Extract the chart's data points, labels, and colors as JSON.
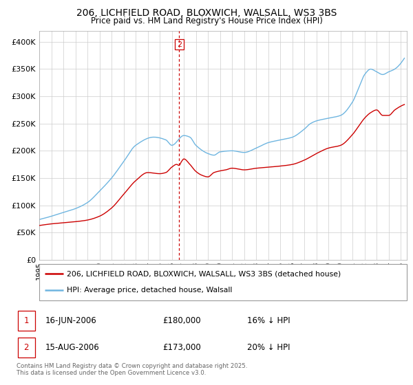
{
  "title_line1": "206, LICHFIELD ROAD, BLOXWICH, WALSALL, WS3 3BS",
  "title_line2": "Price paid vs. HM Land Registry's House Price Index (HPI)",
  "legend_line1": "206, LICHFIELD ROAD, BLOXWICH, WALSALL, WS3 3BS (detached house)",
  "legend_line2": "HPI: Average price, detached house, Walsall",
  "hpi_color": "#6eb5e0",
  "price_color": "#cc0000",
  "annotation_color": "#cc0000",
  "transaction1_date": "16-JUN-2006",
  "transaction1_price": "£180,000",
  "transaction1_hpi": "16% ↓ HPI",
  "transaction2_date": "15-AUG-2006",
  "transaction2_price": "£173,000",
  "transaction2_hpi": "20% ↓ HPI",
  "transaction2_year": 2006.62,
  "footnote": "Contains HM Land Registry data © Crown copyright and database right 2025.\nThis data is licensed under the Open Government Licence v3.0.",
  "ylim": [
    0,
    420000
  ],
  "yticks": [
    0,
    50000,
    100000,
    150000,
    200000,
    250000,
    300000,
    350000,
    400000
  ],
  "background_color": "#ffffff",
  "grid_color": "#cccccc"
}
